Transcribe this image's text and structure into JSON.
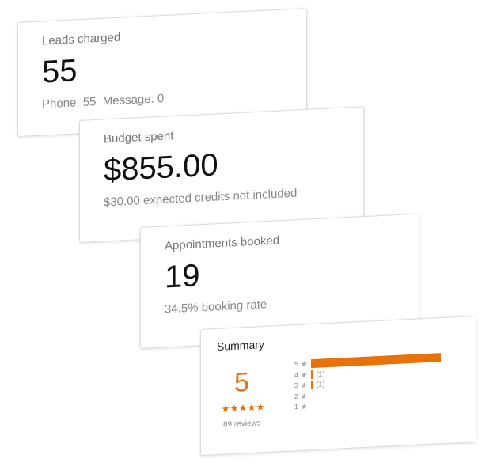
{
  "cards": [
    {
      "title": "Leads charged",
      "value": "55",
      "detail": "Phone: 55  Message: 0"
    },
    {
      "title": "Budget spent",
      "value": "$855.00",
      "detail": "$30.00 expected credits not included"
    },
    {
      "title": "Appointments booked",
      "value": "19",
      "detail": "34.5% booking rate"
    }
  ],
  "summary": {
    "title": "Summary",
    "rating": "5",
    "reviews": "69 reviews",
    "rows": [
      {
        "stars": 5,
        "count": 67
      },
      {
        "stars": 4,
        "count": 1,
        "label": "(1)"
      },
      {
        "stars": 3,
        "count": 1,
        "label": "(1)"
      },
      {
        "stars": 2,
        "count": 0
      },
      {
        "stars": 1,
        "count": 0
      }
    ],
    "color": "#e8710a"
  }
}
